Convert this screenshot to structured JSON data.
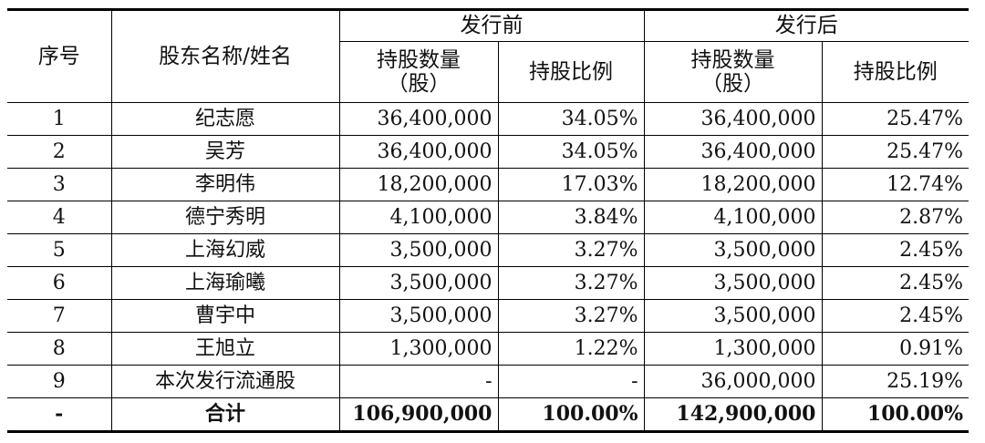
{
  "headers": {
    "seq": "序号",
    "name": "股东名称/姓名",
    "before": "发行前",
    "after": "发行后",
    "shares_line1": "持股数量",
    "shares_line2": "（股）",
    "ratio": "持股比例"
  },
  "rows": [
    {
      "seq": "1",
      "name": "纪志愿",
      "before_shares": "36,400,000",
      "before_ratio": "34.05%",
      "after_shares": "36,400,000",
      "after_ratio": "25.47%"
    },
    {
      "seq": "2",
      "name": "吴芳",
      "before_shares": "36,400,000",
      "before_ratio": "34.05%",
      "after_shares": "36,400,000",
      "after_ratio": "25.47%"
    },
    {
      "seq": "3",
      "name": "李明伟",
      "before_shares": "18,200,000",
      "before_ratio": "17.03%",
      "after_shares": "18,200,000",
      "after_ratio": "12.74%"
    },
    {
      "seq": "4",
      "name": "德宁秀明",
      "before_shares": "4,100,000",
      "before_ratio": "3.84%",
      "after_shares": "4,100,000",
      "after_ratio": "2.87%"
    },
    {
      "seq": "5",
      "name": "上海幻威",
      "before_shares": "3,500,000",
      "before_ratio": "3.27%",
      "after_shares": "3,500,000",
      "after_ratio": "2.45%"
    },
    {
      "seq": "6",
      "name": "上海瑜曦",
      "before_shares": "3,500,000",
      "before_ratio": "3.27%",
      "after_shares": "3,500,000",
      "after_ratio": "2.45%"
    },
    {
      "seq": "7",
      "name": "曹宇中",
      "before_shares": "3,500,000",
      "before_ratio": "3.27%",
      "after_shares": "3,500,000",
      "after_ratio": "2.45%"
    },
    {
      "seq": "8",
      "name": "王旭立",
      "before_shares": "1,300,000",
      "before_ratio": "1.22%",
      "after_shares": "1,300,000",
      "after_ratio": "0.91%"
    },
    {
      "seq": "9",
      "name": "本次发行流通股",
      "before_shares": "-",
      "before_ratio": "-",
      "after_shares": "36,000,000",
      "after_ratio": "25.19%"
    }
  ],
  "total": {
    "seq": "-",
    "name": "合计",
    "before_shares": "106,900,000",
    "before_ratio": "100.00%",
    "after_shares": "142,900,000",
    "after_ratio": "100.00%"
  }
}
